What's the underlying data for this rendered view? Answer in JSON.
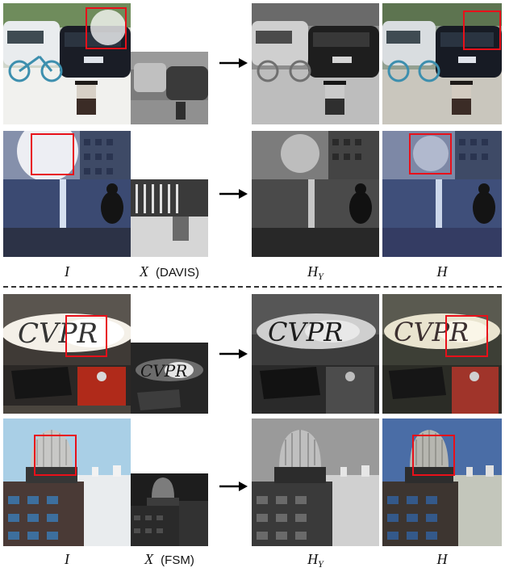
{
  "figure": {
    "top_labels": {
      "input": "I",
      "event": "X",
      "event_source": "(DAVIS)",
      "hy_base": "H",
      "hy_sub": "Y",
      "output": "H"
    },
    "bottom_labels": {
      "input": "I",
      "event": "X",
      "event_source": "(FSM)",
      "hy_base": "H",
      "hy_sub": "Y",
      "output": "H"
    },
    "scenes": {
      "scene1": "parking lot with cars, bicycle and cup",
      "scene2": "buildings facing bright sun with person sitting",
      "scene3": "CVPR sign lit by bright lamp with stapler",
      "scene4": "dome-top building against blue sky"
    },
    "embedded_text": "CVPR",
    "colors": {
      "highlight_box": "#e8101a",
      "arrow": "#000000",
      "divider": "#333333"
    }
  }
}
